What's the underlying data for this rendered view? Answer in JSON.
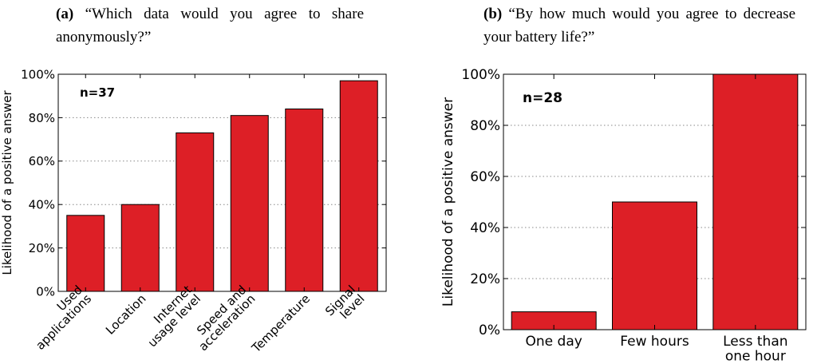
{
  "captions": {
    "a": {
      "tag": "(a)",
      "text": "“Which data would you agree to share anonymously?”"
    },
    "b": {
      "tag": "(b)",
      "text": "“By how much would you agree to decrease your battery life?”"
    }
  },
  "chart_data": [
    {
      "type": "bar",
      "categories": [
        [
          "Used",
          "applications"
        ],
        [
          "Location"
        ],
        [
          "Internet",
          "usage level"
        ],
        [
          "Speed and",
          "acceleration"
        ],
        [
          "Temperature"
        ],
        [
          "Signal",
          "level"
        ]
      ],
      "values": [
        35,
        40,
        73,
        81,
        84,
        97
      ],
      "ylabel": "Likelihood of a positive answer",
      "yticks": [
        "0%",
        "20%",
        "40%",
        "60%",
        "80%",
        "100%"
      ],
      "ylim": [
        0,
        100
      ],
      "annotation": "n=37",
      "grid": "horizontal dotted",
      "color": "#dd1f26"
    },
    {
      "type": "bar",
      "categories": [
        [
          "One day"
        ],
        [
          "Few hours"
        ],
        [
          "Less than",
          "one hour"
        ]
      ],
      "values": [
        7,
        50,
        100
      ],
      "ylabel": "Likelihood of a positive answer",
      "yticks": [
        "0%",
        "20%",
        "40%",
        "60%",
        "80%",
        "100%"
      ],
      "ylim": [
        0,
        100
      ],
      "annotation": "n=28",
      "grid": "horizontal dotted",
      "color": "#dd1f26"
    }
  ]
}
